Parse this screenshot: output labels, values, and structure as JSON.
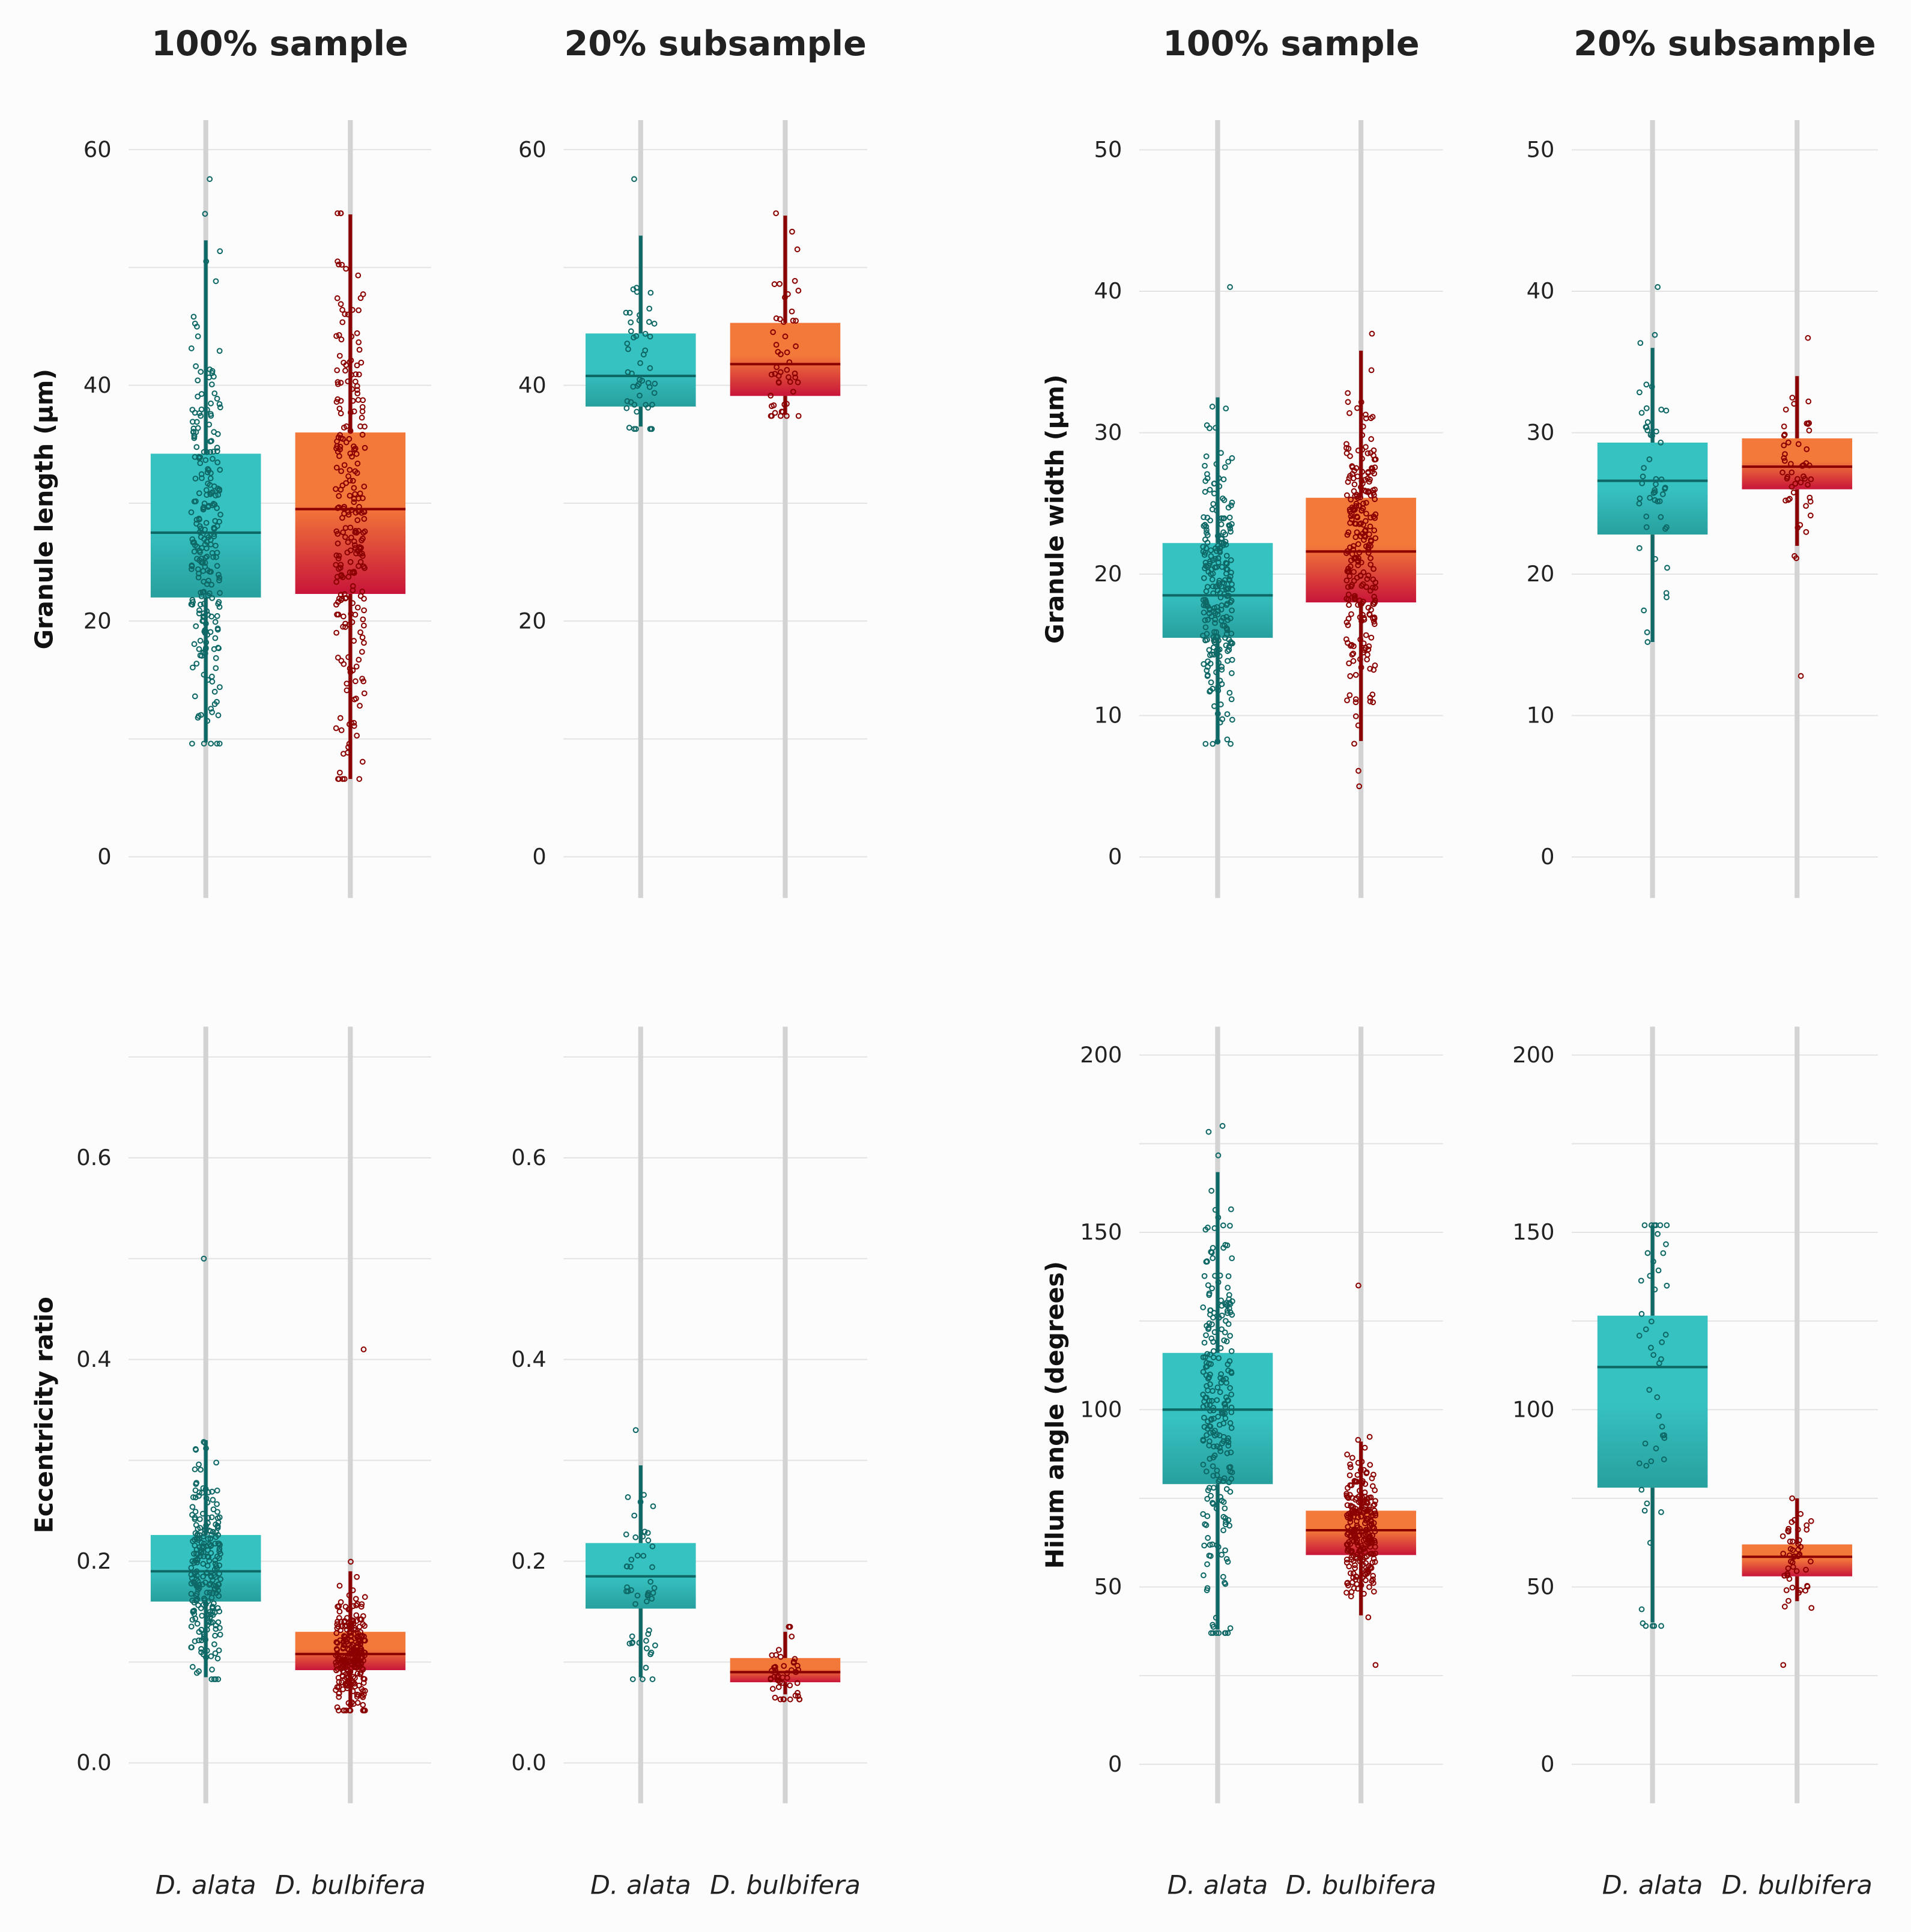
{
  "colors": {
    "alata_top": "#37c2c2",
    "alata_bottom": "#27a09e",
    "alata_line": "#0e6866",
    "bulb_top": "#f3793a",
    "bulb_bottom": "#c8153a",
    "bulb_line": "#8b0000",
    "grid": "#e3e3e3",
    "cat_line": "#d3d3d3"
  },
  "chart_data": [
    {
      "type": "box",
      "title": "100% sample",
      "ylabel": "Granule length (µm)",
      "ylim": [
        -3.5,
        62.5
      ],
      "yticks": [
        0,
        20,
        40,
        60
      ],
      "ytick_labels": [
        "0",
        "20",
        "40",
        "60"
      ],
      "minor_step": 10,
      "categories": [
        "D. alata",
        "D. bulbifera"
      ],
      "n": [
        250,
        250
      ],
      "series": [
        {
          "name": "D. alata",
          "q1": 22,
          "median": 27.5,
          "q3": 34.2,
          "whisker_low": 9.7,
          "whisker_high": 52.3,
          "min": 9.6,
          "max": 57.5
        },
        {
          "name": "D. bulbifera",
          "q1": 22.3,
          "median": 29.5,
          "q3": 36,
          "whisker_low": 6.6,
          "whisker_high": 54.5,
          "min": 6.6,
          "max": 54.6
        }
      ]
    },
    {
      "type": "box",
      "title": "20% subsample",
      "ylabel": "",
      "ylim": [
        -3.5,
        62.5
      ],
      "yticks": [
        0,
        20,
        40,
        60
      ],
      "ytick_labels": [
        "0",
        "20",
        "40",
        "60"
      ],
      "minor_step": 10,
      "categories": [
        "D. alata",
        "D. bulbifera"
      ],
      "n": [
        50,
        50
      ],
      "series": [
        {
          "name": "D. alata",
          "q1": 38.2,
          "median": 40.8,
          "q3": 44.4,
          "whisker_low": 36.5,
          "whisker_high": 52.7,
          "min": 36.3,
          "max": 57.5
        },
        {
          "name": "D. bulbifera",
          "q1": 39.1,
          "median": 41.8,
          "q3": 45.3,
          "whisker_low": 37.5,
          "whisker_high": 54.4,
          "min": 37.4,
          "max": 54.6
        }
      ]
    },
    {
      "type": "box",
      "title": "100% sample",
      "ylabel": "Granule width (µm)",
      "ylim": [
        -2.9,
        52.1
      ],
      "yticks": [
        0,
        10,
        20,
        30,
        40,
        50
      ],
      "ytick_labels": [
        "0",
        "10",
        "20",
        "30",
        "40",
        "50"
      ],
      "minor_step": 10,
      "categories": [
        "D. alata",
        "D. bulbifera"
      ],
      "n": [
        250,
        250
      ],
      "series": [
        {
          "name": "D. alata",
          "q1": 15.5,
          "median": 18.5,
          "q3": 22.2,
          "whisker_low": 8,
          "whisker_high": 32.5,
          "min": 8,
          "max": 40.3
        },
        {
          "name": "D. bulbifera",
          "q1": 18,
          "median": 21.6,
          "q3": 25.4,
          "whisker_low": 8.2,
          "whisker_high": 35.8,
          "min": 5,
          "max": 37
        }
      ]
    },
    {
      "type": "box",
      "title": "20% subsample",
      "ylabel": "",
      "ylim": [
        -2.9,
        52.1
      ],
      "yticks": [
        0,
        10,
        20,
        30,
        40,
        50
      ],
      "ytick_labels": [
        "0",
        "10",
        "20",
        "30",
        "40",
        "50"
      ],
      "minor_step": 10,
      "categories": [
        "D. alata",
        "D. bulbifera"
      ],
      "n": [
        50,
        50
      ],
      "series": [
        {
          "name": "D. alata",
          "q1": 22.8,
          "median": 26.6,
          "q3": 29.3,
          "whisker_low": 15.2,
          "whisker_high": 36,
          "min": 15.2,
          "max": 40.3
        },
        {
          "name": "D. bulbifera",
          "q1": 26,
          "median": 27.6,
          "q3": 29.6,
          "whisker_low": 22,
          "whisker_high": 34,
          "min": 12.8,
          "max": 36.7
        }
      ]
    },
    {
      "type": "box",
      "title": "",
      "ylabel": "Eccentricity ratio",
      "ylim": [
        -0.04,
        0.73
      ],
      "yticks": [
        0,
        0.2,
        0.4,
        0.6
      ],
      "ytick_labels": [
        "0.0",
        "0.2",
        "0.4",
        "0.6"
      ],
      "minor_step": 0.1,
      "categories": [
        "D. alata",
        "D. bulbifera"
      ],
      "n": [
        250,
        250
      ],
      "series": [
        {
          "name": "D. alata",
          "q1": 0.16,
          "median": 0.19,
          "q3": 0.226,
          "whisker_low": 0.085,
          "whisker_high": 0.32,
          "min": 0.083,
          "max": 0.5
        },
        {
          "name": "D. bulbifera",
          "q1": 0.092,
          "median": 0.108,
          "q3": 0.13,
          "whisker_low": 0.055,
          "whisker_high": 0.19,
          "min": 0.052,
          "max": 0.41
        }
      ]
    },
    {
      "type": "box",
      "title": "",
      "ylabel": "",
      "ylim": [
        -0.04,
        0.73
      ],
      "yticks": [
        0,
        0.2,
        0.4,
        0.6
      ],
      "ytick_labels": [
        "0.0",
        "0.2",
        "0.4",
        "0.6"
      ],
      "minor_step": 0.1,
      "categories": [
        "D. alata",
        "D. bulbifera"
      ],
      "n": [
        50,
        50
      ],
      "series": [
        {
          "name": "D. alata",
          "q1": 0.153,
          "median": 0.185,
          "q3": 0.218,
          "whisker_low": 0.085,
          "whisker_high": 0.295,
          "min": 0.083,
          "max": 0.33
        },
        {
          "name": "D. bulbifera",
          "q1": 0.08,
          "median": 0.09,
          "q3": 0.104,
          "whisker_low": 0.068,
          "whisker_high": 0.13,
          "min": 0.063,
          "max": 0.135
        }
      ]
    },
    {
      "type": "box",
      "title": "",
      "ylabel": "Hilum angle (degrees)",
      "ylim": [
        -11,
        208
      ],
      "yticks": [
        0,
        50,
        100,
        150,
        200
      ],
      "ytick_labels": [
        "0",
        "50",
        "100",
        "150",
        "200"
      ],
      "minor_step": 25,
      "categories": [
        "D. alata",
        "D. bulbifera"
      ],
      "n": [
        250,
        250
      ],
      "series": [
        {
          "name": "D. alata",
          "q1": 79,
          "median": 100,
          "q3": 116,
          "whisker_low": 38,
          "whisker_high": 167,
          "min": 37,
          "max": 180
        },
        {
          "name": "D. bulbifera",
          "q1": 59,
          "median": 66,
          "q3": 71.5,
          "whisker_low": 42,
          "whisker_high": 91,
          "min": 28,
          "max": 135
        }
      ]
    },
    {
      "type": "box",
      "title": "",
      "ylabel": "",
      "ylim": [
        -11,
        208
      ],
      "yticks": [
        0,
        50,
        100,
        150,
        200
      ],
      "ytick_labels": [
        "0",
        "50",
        "100",
        "150",
        "200"
      ],
      "minor_step": 25,
      "categories": [
        "D. alata",
        "D. bulbifera"
      ],
      "n": [
        50,
        50
      ],
      "series": [
        {
          "name": "D. alata",
          "q1": 78,
          "median": 112,
          "q3": 126.5,
          "whisker_low": 40,
          "whisker_high": 152,
          "min": 39,
          "max": 152
        },
        {
          "name": "D. bulbifera",
          "q1": 53,
          "median": 58.5,
          "q3": 62,
          "whisker_low": 46,
          "whisker_high": 75,
          "min": 28,
          "max": 75
        }
      ]
    }
  ]
}
